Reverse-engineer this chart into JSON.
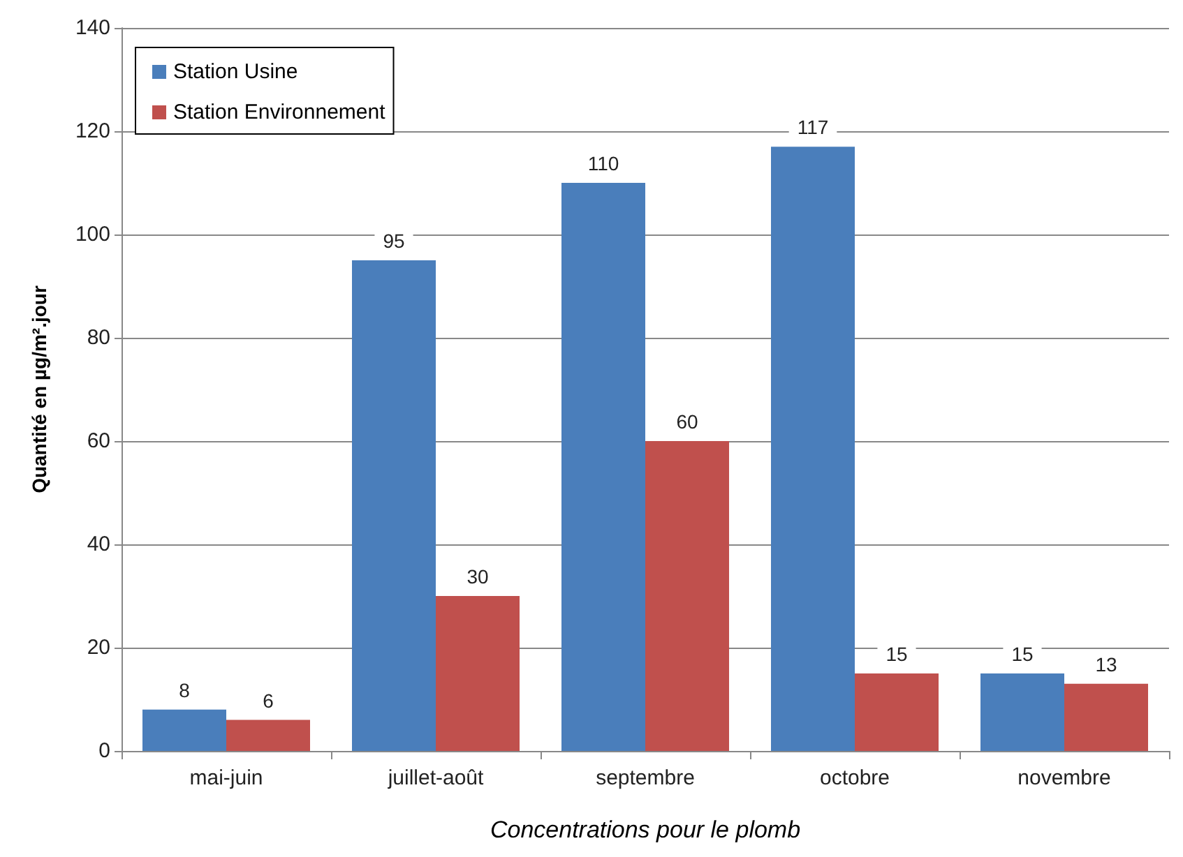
{
  "chart_data": {
    "type": "bar",
    "xlabel": "Concentrations pour le plomb",
    "ylabel": "Quantité en µg/m².jour",
    "categories": [
      "mai-juin",
      "juillet-août",
      "septembre",
      "octobre",
      "novembre"
    ],
    "series": [
      {
        "name": "Station Usine",
        "color": "#4a7ebb",
        "values": [
          8,
          95,
          110,
          117,
          15
        ]
      },
      {
        "name": "Station Environnement",
        "color": "#c0504d",
        "values": [
          6,
          30,
          60,
          15,
          13
        ]
      }
    ],
    "ylim": [
      0,
      140
    ],
    "yticks": [
      0,
      20,
      40,
      60,
      80,
      100,
      120,
      140
    ],
    "grid": "y",
    "legend": "top left",
    "data_labels": true
  }
}
